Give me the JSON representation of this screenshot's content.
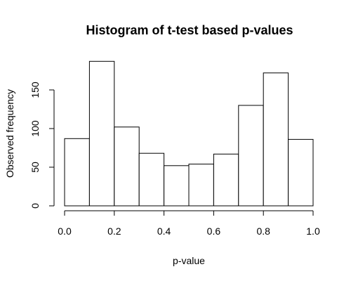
{
  "chart_data": {
    "type": "bar",
    "title": "Histogram of t-test based p-values",
    "xlabel": "p-value",
    "ylabel": "Observed frequency",
    "bins": [
      {
        "start": 0.0,
        "end": 0.1,
        "value": 87
      },
      {
        "start": 0.1,
        "end": 0.2,
        "value": 187
      },
      {
        "start": 0.2,
        "end": 0.3,
        "value": 102
      },
      {
        "start": 0.3,
        "end": 0.4,
        "value": 68
      },
      {
        "start": 0.4,
        "end": 0.5,
        "value": 52
      },
      {
        "start": 0.5,
        "end": 0.6,
        "value": 54
      },
      {
        "start": 0.6,
        "end": 0.7,
        "value": 67
      },
      {
        "start": 0.7,
        "end": 0.8,
        "value": 130
      },
      {
        "start": 0.8,
        "end": 0.9,
        "value": 172
      },
      {
        "start": 0.9,
        "end": 1.0,
        "value": 86
      }
    ],
    "xlim": [
      0.0,
      1.0
    ],
    "ylim": [
      0,
      200
    ],
    "x_ticks": [
      {
        "value": 0.0,
        "label": "0.0"
      },
      {
        "value": 0.2,
        "label": "0.2"
      },
      {
        "value": 0.4,
        "label": "0.4"
      },
      {
        "value": 0.6,
        "label": "0.6"
      },
      {
        "value": 0.8,
        "label": "0.8"
      },
      {
        "value": 1.0,
        "label": "1.0"
      }
    ],
    "y_ticks": [
      {
        "value": 0,
        "label": "0"
      },
      {
        "value": 50,
        "label": "50"
      },
      {
        "value": 100,
        "label": "100"
      },
      {
        "value": 150,
        "label": "150"
      }
    ],
    "grid": false,
    "bar_fill": "#ffffff",
    "bar_stroke": "#000000"
  }
}
